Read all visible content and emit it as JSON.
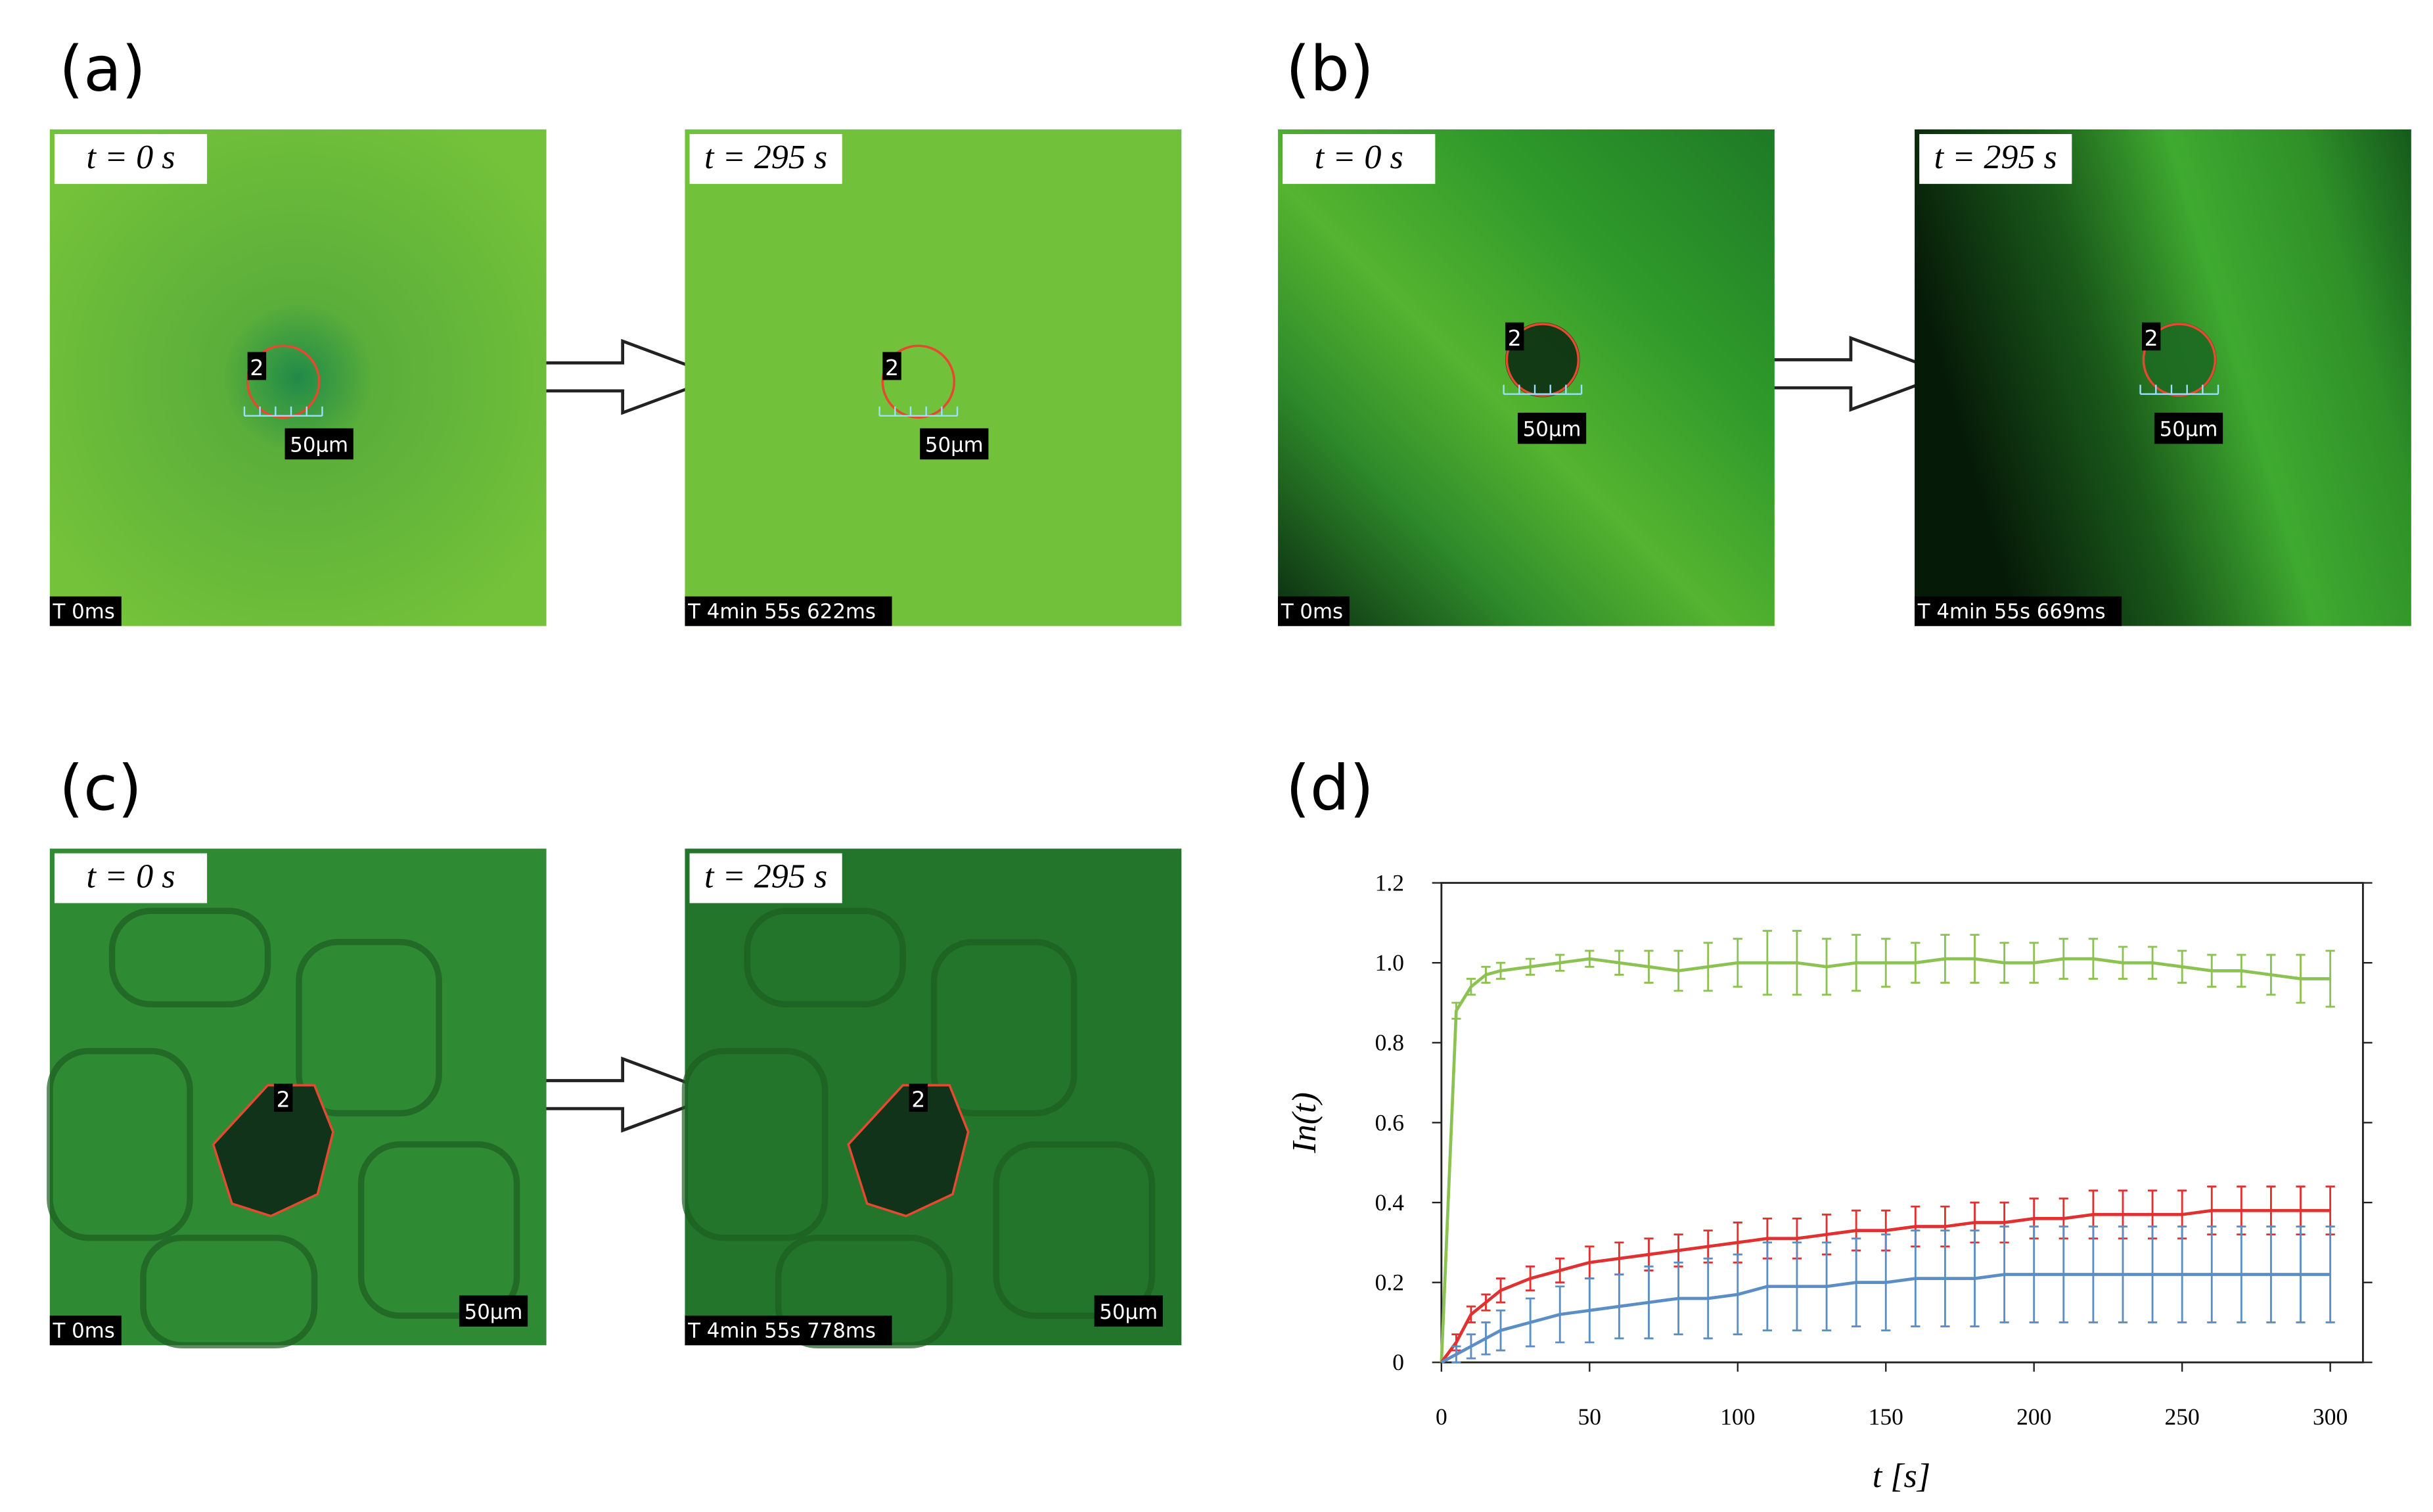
{
  "panels": [
    {
      "label": "(a)",
      "images": [
        {
          "time": "t = 0 s",
          "marker": "2",
          "scale": "50μm",
          "stamp": "T 0ms"
        },
        {
          "time": "t = 295 s",
          "marker": "2",
          "scale": "50μm",
          "stamp": "T 4min 55s 622ms"
        }
      ]
    },
    {
      "label": "(b)",
      "images": [
        {
          "time": "t = 0 s",
          "marker": "2",
          "scale": "50μm",
          "stamp": "T 0ms"
        },
        {
          "time": "t = 295 s",
          "marker": "2",
          "scale": "50μm",
          "stamp": "T 4min 55s 669ms"
        }
      ]
    },
    {
      "label": "(c)",
      "images": [
        {
          "time": "t = 0 s",
          "marker": "2",
          "scale": "50μm",
          "stamp": "T 0ms"
        },
        {
          "time": "t = 295 s",
          "marker": "2",
          "scale": "50μm",
          "stamp": "T 4min 55s 778ms"
        }
      ]
    }
  ],
  "chart_label": "(d)",
  "chart_data": {
    "type": "line",
    "xlabel": "t [s]",
    "ylabel": "In(t)",
    "x": [
      0,
      5,
      10,
      15,
      20,
      30,
      40,
      50,
      60,
      70,
      80,
      90,
      100,
      110,
      120,
      130,
      140,
      150,
      160,
      170,
      180,
      190,
      200,
      210,
      220,
      230,
      240,
      250,
      260,
      270,
      280,
      290,
      300
    ],
    "xlim": [
      0,
      300
    ],
    "xticks": [
      0,
      50,
      100,
      150,
      200,
      250,
      300
    ],
    "ylim": [
      0,
      1.2
    ],
    "yticks": [
      0,
      0.2,
      0.4,
      0.6,
      0.8,
      {
        "value": 1,
        "label": "1.0"
      },
      1.2
    ],
    "series": [
      {
        "color": "#8cc252",
        "values": [
          0,
          0.88,
          0.94,
          0.97,
          0.98,
          0.99,
          1.0,
          1.01,
          1.0,
          0.99,
          0.98,
          0.99,
          1.0,
          1.0,
          1.0,
          0.99,
          1.0,
          1.0,
          1.0,
          1.01,
          1.01,
          1.0,
          1.0,
          1.01,
          1.01,
          1.0,
          1.0,
          0.99,
          0.98,
          0.98,
          0.97,
          0.96,
          0.96
        ],
        "errors": [
          0,
          0.02,
          0.02,
          0.02,
          0.02,
          0.02,
          0.02,
          0.02,
          0.03,
          0.04,
          0.05,
          0.06,
          0.06,
          0.08,
          0.08,
          0.07,
          0.07,
          0.06,
          0.05,
          0.06,
          0.06,
          0.05,
          0.05,
          0.05,
          0.05,
          0.04,
          0.04,
          0.04,
          0.04,
          0.04,
          0.05,
          0.06,
          0.07
        ]
      },
      {
        "color": "#e03030",
        "values": [
          0,
          0.05,
          0.12,
          0.15,
          0.18,
          0.21,
          0.23,
          0.25,
          0.26,
          0.27,
          0.28,
          0.29,
          0.3,
          0.31,
          0.31,
          0.32,
          0.33,
          0.33,
          0.34,
          0.34,
          0.35,
          0.35,
          0.36,
          0.36,
          0.37,
          0.37,
          0.37,
          0.37,
          0.38,
          0.38,
          0.38,
          0.38,
          0.38
        ],
        "errors": [
          0,
          0.02,
          0.02,
          0.02,
          0.03,
          0.03,
          0.03,
          0.04,
          0.04,
          0.04,
          0.04,
          0.04,
          0.05,
          0.05,
          0.05,
          0.05,
          0.05,
          0.05,
          0.05,
          0.05,
          0.05,
          0.05,
          0.05,
          0.05,
          0.06,
          0.06,
          0.06,
          0.06,
          0.06,
          0.06,
          0.06,
          0.06,
          0.06
        ]
      },
      {
        "color": "#5b8ec4",
        "values": [
          0,
          0.02,
          0.04,
          0.06,
          0.08,
          0.1,
          0.12,
          0.13,
          0.14,
          0.15,
          0.16,
          0.16,
          0.17,
          0.19,
          0.19,
          0.19,
          0.2,
          0.2,
          0.21,
          0.21,
          0.21,
          0.22,
          0.22,
          0.22,
          0.22,
          0.22,
          0.22,
          0.22,
          0.22,
          0.22,
          0.22,
          0.22,
          0.22
        ],
        "errors": [
          0,
          0.02,
          0.03,
          0.04,
          0.05,
          0.06,
          0.07,
          0.08,
          0.08,
          0.09,
          0.09,
          0.1,
          0.1,
          0.11,
          0.11,
          0.11,
          0.11,
          0.12,
          0.12,
          0.12,
          0.12,
          0.12,
          0.12,
          0.12,
          0.12,
          0.12,
          0.12,
          0.12,
          0.12,
          0.12,
          0.12,
          0.12,
          0.12
        ]
      }
    ]
  }
}
